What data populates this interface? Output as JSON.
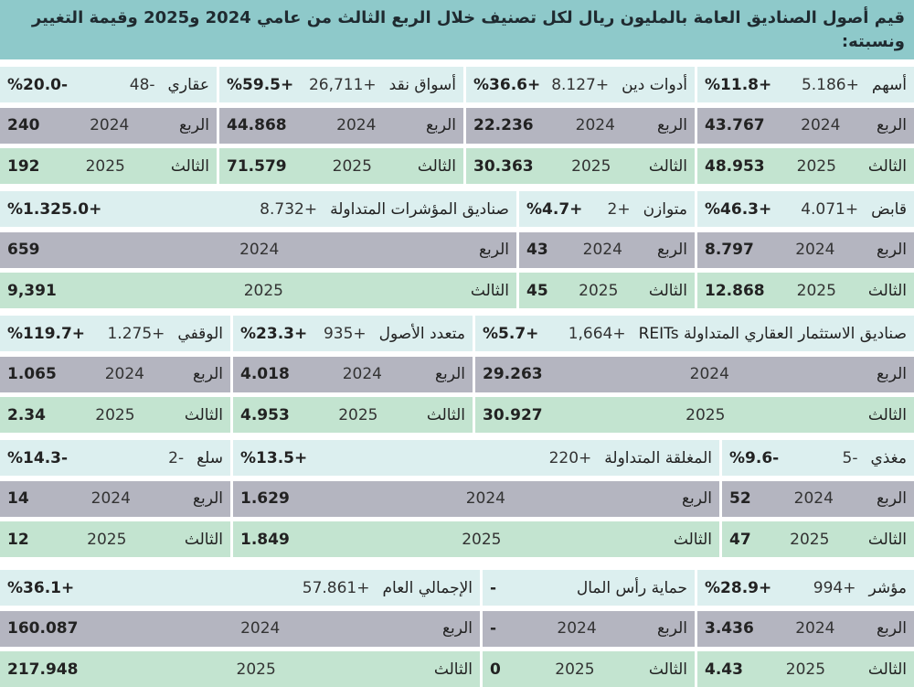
{
  "title": "قيم أصول الصناديق العامة بالمليون ريال لكل تصنيف خلال الربع الثالث من عامي 2024 و2025 وقيمة التغيير ونسبته:",
  "row_labels": {
    "q2024": "الربع",
    "q2025": "الثالث",
    "y2024": "2024",
    "y2025": "2025"
  },
  "colors": {
    "title_bg": "#8ec9ca",
    "header_bg": "#dcefef",
    "row_2024_bg": "#b4b5c0",
    "row_2025_bg": "#c3e4d0"
  },
  "sections": [
    {
      "columns": [
        {
          "name": "أسهم",
          "change": "5.186+",
          "pct": "%11.8+",
          "v2024": "43.767",
          "v2025": "48.953"
        },
        {
          "name": "أدوات دين",
          "change": "8.127+",
          "pct": "%36.6+",
          "v2024": "22.236",
          "v2025": "30.363"
        },
        {
          "name": "أسواق نقد",
          "change": "26,711+",
          "pct": "%59.5+",
          "v2024": "44.868",
          "v2025": "71.579"
        },
        {
          "name": "عقاري",
          "change": "48-",
          "pct": "%20.0-",
          "v2024": "240",
          "v2025": "192"
        }
      ]
    },
    {
      "columns": [
        {
          "name": "قابض",
          "change": "4.071+",
          "pct": "%46.3+",
          "v2024": "8.797",
          "v2025": "12.868"
        },
        {
          "name": "متوازن",
          "change": "2+",
          "pct": "%4.7+",
          "v2024": "43",
          "v2025": "45"
        },
        {
          "name": "صناديق المؤشرات المتداولة",
          "change": "8.732+",
          "pct": "%1.325.0+",
          "v2024": "659",
          "v2025": "9,391"
        }
      ]
    },
    {
      "columns": [
        {
          "name": "صناديق الاستثمار العقاري المتداولة REITs",
          "change": "1,664+",
          "pct": "%5.7+",
          "v2024": "29.263",
          "v2025": "30.927"
        },
        {
          "name": "متعدد الأصول",
          "change": "935+",
          "pct": "%23.3+",
          "v2024": "4.018",
          "v2025": "4.953"
        },
        {
          "name": "الوقفي",
          "change": "1.275+",
          "pct": "%119.7+",
          "v2024": "1.065",
          "v2025": "2.34"
        }
      ]
    },
    {
      "columns": [
        {
          "name": "مغذي",
          "change": "5-",
          "pct": "%9.6-",
          "v2024": "52",
          "v2025": "47"
        },
        {
          "name": "المغلقة المتداولة",
          "change": "220+",
          "pct": "%13.5+",
          "v2024": "1.629",
          "v2025": "1.849"
        },
        {
          "name": "سلع",
          "change": "2-",
          "pct": "%14.3-",
          "v2024": "14",
          "v2025": "12"
        }
      ]
    },
    {
      "columns": [
        {
          "name": "مؤشر",
          "change": "994+",
          "pct": "%28.9+",
          "v2024": "3.436",
          "v2025": "4.43"
        },
        {
          "name": "حماية رأس المال",
          "change": "",
          "pct": "-",
          "v2024": "-",
          "v2025": "0"
        },
        {
          "name": "الإجمالي العام",
          "change": "57.861+",
          "pct": "%36.1+",
          "v2024": "160.087",
          "v2025": "217.948"
        }
      ]
    }
  ]
}
